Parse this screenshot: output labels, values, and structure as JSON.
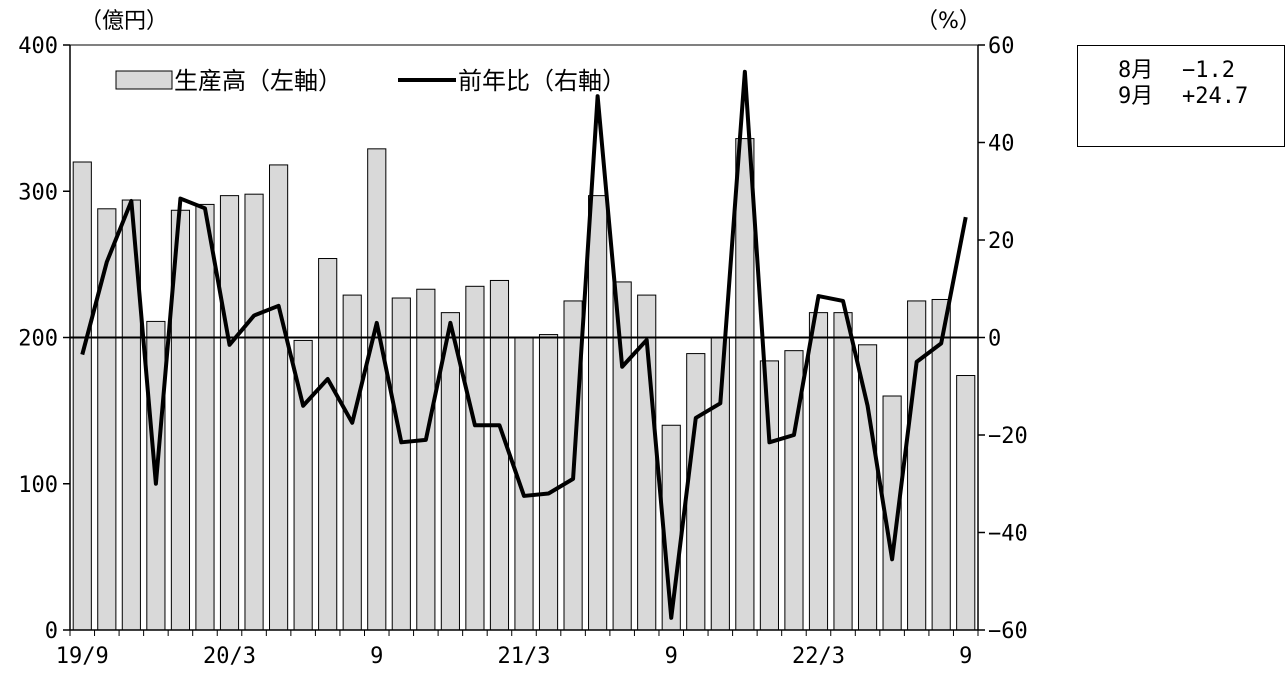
{
  "chart_data": {
    "type": "bar",
    "left_unit": "（億円）",
    "right_unit": "（%）",
    "x_tick_labels": [
      "19/9",
      "20/3",
      "9",
      "21/3",
      "9",
      "22/3",
      "9"
    ],
    "x_tick_positions": [
      "2019-09",
      "2020-03",
      "2020-09",
      "2021-03",
      "2021-09",
      "2022-03",
      "2022-09"
    ],
    "y_left": {
      "ticks": [
        "0",
        "100",
        "200",
        "300",
        "400"
      ],
      "lim": [
        0,
        400
      ]
    },
    "y_right": {
      "ticks": [
        "60",
        "40",
        "20",
        "0",
        "−20",
        "−40",
        "−60"
      ],
      "lim": [
        -60,
        60
      ]
    },
    "legend": {
      "bar_label": "生産高（左軸）",
      "line_label": "前年比（右軸）",
      "placement": "top-left"
    },
    "months": [
      "2019-09",
      "2019-10",
      "2019-11",
      "2019-12",
      "2020-01",
      "2020-02",
      "2020-03",
      "2020-04",
      "2020-05",
      "2020-06",
      "2020-07",
      "2020-08",
      "2020-09",
      "2020-10",
      "2020-11",
      "2020-12",
      "2021-01",
      "2021-02",
      "2021-03",
      "2021-04",
      "2021-05",
      "2021-06",
      "2021-07",
      "2021-08",
      "2021-09",
      "2021-10",
      "2021-11",
      "2021-12",
      "2022-01",
      "2022-02",
      "2022-03",
      "2022-04",
      "2022-05",
      "2022-06",
      "2022-07",
      "2022-08",
      "2022-09"
    ],
    "series": [
      {
        "name": "生産高（左軸）",
        "axis": "left",
        "kind": "bar",
        "values": [
          320,
          288,
          294,
          211,
          287,
          291,
          297,
          298,
          318,
          198,
          254,
          229,
          329,
          227,
          233,
          217,
          235,
          239,
          200,
          202,
          225,
          297,
          238,
          229,
          140,
          189,
          200,
          336,
          184,
          191,
          217,
          217,
          195,
          160,
          225,
          226,
          174
        ]
      },
      {
        "name": "前年比（右軸）",
        "axis": "right",
        "kind": "line",
        "values": [
          -3.5,
          15.5,
          28,
          -30,
          28.5,
          26.5,
          -1.5,
          4.5,
          6.5,
          -14,
          -8.5,
          -17.5,
          3,
          -21.5,
          -21,
          3,
          -18,
          -18,
          -32.5,
          -32,
          -29,
          49.5,
          -6,
          -0.5,
          -57.5,
          -16.5,
          -13.5,
          54.5,
          -21.5,
          -20,
          8.5,
          7.5,
          -14,
          -45.5,
          -5,
          -1.2,
          24.7
        ]
      }
    ],
    "colors": {
      "bar_fill": "#d9d9d9",
      "bar_stroke": "#000000",
      "line": "#000000"
    },
    "grid": false
  },
  "note_box": {
    "rows": [
      {
        "month": "8月",
        "value": "−1.2"
      },
      {
        "month": "9月",
        "value": "+24.7"
      }
    ]
  }
}
